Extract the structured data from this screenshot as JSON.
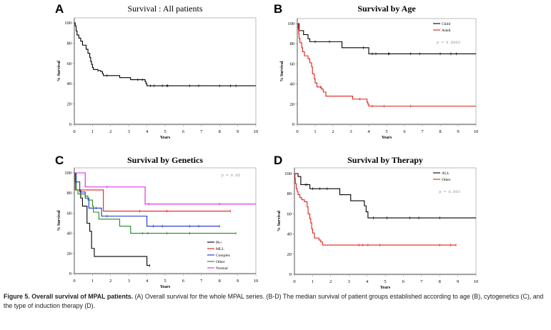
{
  "caption": {
    "bold": "Figure 5. Overall survival of MPAL patients.",
    "text": " (A) Overall survival for the whole MPAL series. (B-D) The median survival of patient groups established according to age (B), cytogenetics (C), and the type of induction therapy (D)."
  },
  "chart_data": [
    {
      "type": "line",
      "panel": "A",
      "title": "Survival : All patients",
      "xlabel": "Years",
      "ylabel": "% Survival",
      "xlim": [
        0,
        10
      ],
      "ylim": [
        0,
        100
      ],
      "xticks": [
        0,
        1,
        2,
        3,
        4,
        5,
        6,
        7,
        8,
        9,
        10
      ],
      "yticks": [
        0,
        20,
        40,
        60,
        80,
        100
      ],
      "pvalue": "",
      "legend": "none",
      "series": [
        {
          "color": "#000000",
          "end": 10,
          "steps": [
            [
              0,
              100
            ],
            [
              0.05,
              97
            ],
            [
              0.1,
              92
            ],
            [
              0.15,
              88
            ],
            [
              0.25,
              85
            ],
            [
              0.35,
              82
            ],
            [
              0.45,
              78
            ],
            [
              0.65,
              74
            ],
            [
              0.75,
              70
            ],
            [
              0.85,
              66
            ],
            [
              0.9,
              62
            ],
            [
              0.95,
              59
            ],
            [
              1.0,
              56
            ],
            [
              1.05,
              54
            ],
            [
              1.3,
              53
            ],
            [
              1.45,
              52
            ],
            [
              1.55,
              50
            ],
            [
              1.6,
              48
            ],
            [
              2.5,
              46
            ],
            [
              3.1,
              44
            ],
            [
              3.9,
              42
            ],
            [
              3.95,
              40
            ],
            [
              4.0,
              38
            ]
          ],
          "censored": [
            1.3,
            1.8,
            3.5,
            3.75,
            4.2,
            4.4,
            4.85,
            5.1,
            5.15,
            6.35,
            6.85,
            8,
            8.6,
            8.9
          ]
        }
      ]
    },
    {
      "type": "line",
      "panel": "B",
      "title": "Survival by Age",
      "xlabel": "Years",
      "ylabel": "% Survival",
      "xlim": [
        0,
        10
      ],
      "ylim": [
        0,
        100
      ],
      "xticks": [
        0,
        1,
        2,
        3,
        4,
        5,
        6,
        7,
        8,
        9,
        10
      ],
      "yticks": [
        0,
        20,
        40,
        60,
        80,
        100
      ],
      "pvalue": "p = 0.0003",
      "legend": "top-right",
      "series": [
        {
          "name": "Child",
          "color": "#000000",
          "end": 10,
          "steps": [
            [
              0,
              100
            ],
            [
              0.1,
              93
            ],
            [
              0.35,
              89
            ],
            [
              0.6,
              85
            ],
            [
              0.7,
              82
            ],
            [
              2.5,
              76
            ],
            [
              4.0,
              70
            ]
          ],
          "censored": [
            1.0,
            1.8,
            3.7,
            4.2,
            4.4,
            5.1,
            5.15,
            6.35,
            6.85,
            8,
            8.6,
            8.9
          ]
        },
        {
          "name": "Adult",
          "color": "#e0201a",
          "end": 10,
          "steps": [
            [
              0,
              100
            ],
            [
              0.05,
              95
            ],
            [
              0.08,
              90
            ],
            [
              0.1,
              85
            ],
            [
              0.15,
              81
            ],
            [
              0.25,
              76
            ],
            [
              0.3,
              72
            ],
            [
              0.4,
              68
            ],
            [
              0.6,
              65
            ],
            [
              0.7,
              61
            ],
            [
              0.8,
              57
            ],
            [
              0.85,
              50
            ],
            [
              0.95,
              45
            ],
            [
              1.0,
              41
            ],
            [
              1.1,
              37
            ],
            [
              1.35,
              35
            ],
            [
              1.45,
              32
            ],
            [
              1.6,
              28
            ],
            [
              3.1,
              25
            ],
            [
              3.9,
              22
            ],
            [
              3.95,
              20
            ],
            [
              4.0,
              18
            ]
          ],
          "censored": [
            1.3,
            3.5,
            4.2,
            4.85,
            6.35
          ]
        }
      ]
    },
    {
      "type": "line",
      "panel": "C",
      "title": "Survival by Genetics",
      "xlabel": "Years",
      "ylabel": "% Survival",
      "xlim": [
        0,
        10
      ],
      "ylim": [
        0,
        100
      ],
      "xticks": [
        0,
        1,
        2,
        3,
        4,
        5,
        6,
        7,
        8,
        9,
        10
      ],
      "yticks": [
        0,
        20,
        40,
        60,
        80,
        100
      ],
      "pvalue": "p = 0.05",
      "legend": "bottom-right",
      "series": [
        {
          "name": "Ph+",
          "color": "#000000",
          "end": 4.15,
          "steps": [
            [
              0,
              100
            ],
            [
              0.05,
              92
            ],
            [
              0.1,
              83
            ],
            [
              0.35,
              75
            ],
            [
              0.45,
              67
            ],
            [
              0.7,
              50
            ],
            [
              0.85,
              42
            ],
            [
              0.95,
              25
            ],
            [
              1.1,
              17
            ],
            [
              4.0,
              8
            ]
          ],
          "censored": [
            4.15
          ]
        },
        {
          "name": "MLL",
          "color": "#e0201a",
          "end": 8.6,
          "steps": [
            [
              0,
              100
            ],
            [
              0.05,
              83
            ],
            [
              1.6,
              62
            ]
          ],
          "censored": [
            3.6,
            5.1,
            8.6
          ]
        },
        {
          "name": "Complex",
          "color": "#1a2ed0",
          "end": 8.0,
          "steps": [
            [
              0,
              100
            ],
            [
              0.1,
              91
            ],
            [
              0.3,
              81
            ],
            [
              0.6,
              75
            ],
            [
              0.8,
              65
            ],
            [
              1.5,
              57
            ],
            [
              4.0,
              47
            ]
          ],
          "censored": [
            1.2,
            1.8,
            4.35,
            4.85,
            6.35,
            6.85,
            8.0
          ]
        },
        {
          "name": "Other",
          "color": "#1e8a1e",
          "end": 8.9,
          "steps": [
            [
              0,
              100
            ],
            [
              0.05,
              90
            ],
            [
              0.1,
              83
            ],
            [
              0.2,
              79
            ],
            [
              0.6,
              77
            ],
            [
              0.75,
              73
            ],
            [
              1.0,
              67
            ],
            [
              1.05,
              61
            ],
            [
              1.35,
              54
            ],
            [
              2.5,
              47
            ],
            [
              3.1,
              40
            ]
          ],
          "censored": [
            3.75,
            4.05,
            5.1,
            6.35,
            8.9
          ]
        },
        {
          "name": "Normal",
          "color": "#e020e0",
          "end": 10,
          "steps": [
            [
              0,
              100
            ],
            [
              0.6,
              86
            ],
            [
              3.9,
              69
            ]
          ],
          "censored": [
            1.8,
            4.1,
            8.0
          ]
        }
      ]
    },
    {
      "type": "line",
      "panel": "D",
      "title": "Survival by Therapy",
      "xlabel": "Years",
      "ylabel": "% Survival",
      "xlim": [
        0,
        10
      ],
      "ylim": [
        0,
        100
      ],
      "xticks": [
        0,
        1,
        2,
        3,
        4,
        5,
        6,
        7,
        8,
        9,
        10
      ],
      "yticks": [
        0,
        20,
        40,
        60,
        80,
        100
      ],
      "pvalue": "p = 0.003",
      "legend": "top-right",
      "series": [
        {
          "name": "ALL",
          "color": "#000000",
          "end": 10,
          "steps": [
            [
              0,
              100
            ],
            [
              0.2,
              97
            ],
            [
              0.35,
              89
            ],
            [
              0.85,
              85
            ],
            [
              2.5,
              79
            ],
            [
              3.1,
              73
            ],
            [
              3.85,
              68
            ],
            [
              3.95,
              62
            ],
            [
              4.05,
              56
            ]
          ],
          "censored": [
            0.6,
            0.7,
            1.0,
            1.4,
            1.8,
            4.35,
            5.1,
            6.35,
            6.85,
            8
          ]
        },
        {
          "name": "Other",
          "color": "#e0201a",
          "end": 8.9,
          "steps": [
            [
              0,
              100
            ],
            [
              0.03,
              95
            ],
            [
              0.05,
              90
            ],
            [
              0.1,
              85
            ],
            [
              0.15,
              82
            ],
            [
              0.2,
              79
            ],
            [
              0.3,
              76
            ],
            [
              0.4,
              74
            ],
            [
              0.55,
              72
            ],
            [
              0.7,
              67
            ],
            [
              0.75,
              60
            ],
            [
              0.85,
              55
            ],
            [
              0.9,
              51
            ],
            [
              0.95,
              45
            ],
            [
              1.0,
              41
            ],
            [
              1.1,
              36
            ],
            [
              1.35,
              34
            ],
            [
              1.45,
              32
            ],
            [
              1.55,
              29
            ]
          ],
          "censored": [
            3.55,
            3.75,
            4.05,
            4.7,
            8.0,
            8.6,
            8.9
          ]
        }
      ]
    }
  ]
}
